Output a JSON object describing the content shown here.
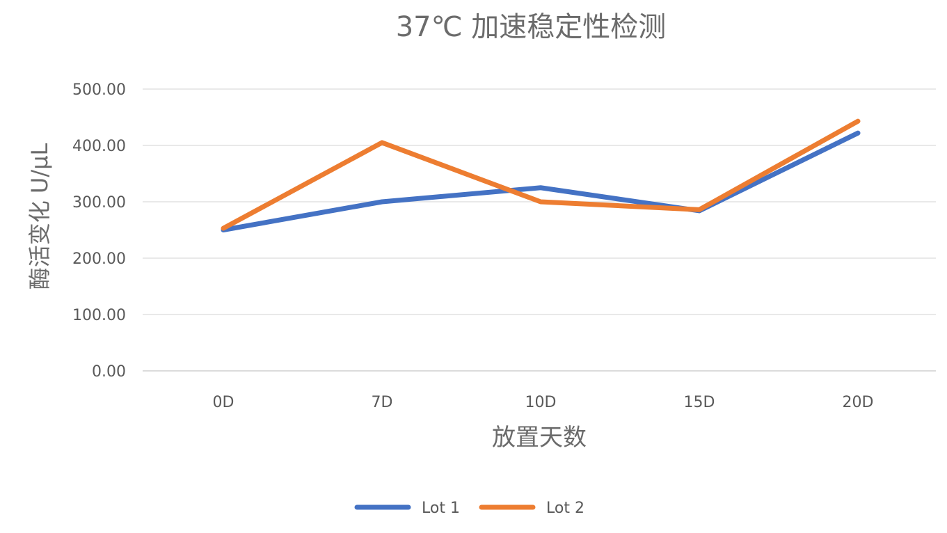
{
  "chart_data": {
    "type": "line",
    "title": "37℃ 加速稳定性检测",
    "xlabel": "放置天数",
    "ylabel": "酶活变化 U/μL",
    "categories": [
      "0D",
      "7D",
      "10D",
      "15D",
      "20D"
    ],
    "ylim": [
      0,
      500
    ],
    "yticks": [
      "0.00",
      "100.00",
      "200.00",
      "300.00",
      "400.00",
      "500.00"
    ],
    "grid": true,
    "legend_position": "bottom",
    "series": [
      {
        "name": "Lot 1",
        "color": "#4472C4",
        "values": [
          250,
          300,
          325,
          284,
          422
        ]
      },
      {
        "name": "Lot 2",
        "color": "#ED7D31",
        "values": [
          253,
          405,
          300,
          286,
          443
        ]
      }
    ]
  }
}
